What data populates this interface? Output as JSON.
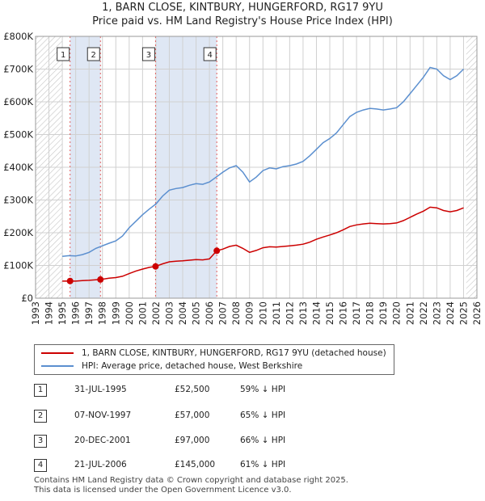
{
  "title_line1": "1, BARN CLOSE, KINTBURY, HUNGERFORD, RG17 9YU",
  "title_line2": "Price paid vs. HM Land Registry's House Price Index (HPI)",
  "legend": {
    "red_label": "1, BARN CLOSE, KINTBURY, HUNGERFORD, RG17 9YU (detached house)",
    "blue_label": "HPI: Average price, detached house, West Berkshire"
  },
  "colors": {
    "red": "#cc0000",
    "blue": "#5b8fcf",
    "shade": "#dfe7f4",
    "hatch": "#c4c4c4",
    "grid": "#d0d0d0",
    "vline": "#e06060"
  },
  "transactions": [
    {
      "num": "1",
      "date": "31-JUL-1995",
      "price": "£52,500",
      "hpi": "59% ↓ HPI"
    },
    {
      "num": "2",
      "date": "07-NOV-1997",
      "price": "£57,000",
      "hpi": "65% ↓ HPI"
    },
    {
      "num": "3",
      "date": "20-DEC-2001",
      "price": "£97,000",
      "hpi": "66% ↓ HPI"
    },
    {
      "num": "4",
      "date": "21-JUL-2006",
      "price": "£145,000",
      "hpi": "61% ↓ HPI"
    }
  ],
  "footer_line1": "Contains HM Land Registry data © Crown copyright and database right 2025.",
  "footer_line2": "This data is licensed under the Open Government Licence v3.0.",
  "chart_data": {
    "type": "line",
    "xlim": [
      1993,
      2026
    ],
    "ylim": [
      0,
      800000
    ],
    "x_ticks": [
      "1993",
      "1994",
      "1995",
      "1996",
      "1997",
      "1998",
      "1999",
      "2000",
      "2001",
      "2002",
      "2003",
      "2004",
      "2005",
      "2006",
      "2007",
      "2008",
      "2009",
      "2010",
      "2011",
      "2012",
      "2013",
      "2014",
      "2015",
      "2016",
      "2017",
      "2018",
      "2019",
      "2020",
      "2021",
      "2022",
      "2023",
      "2024",
      "2025",
      "2026"
    ],
    "y_ticks": [
      {
        "value": 0,
        "label": "£0"
      },
      {
        "value": 100000,
        "label": "£100K"
      },
      {
        "value": 200000,
        "label": "£200K"
      },
      {
        "value": 300000,
        "label": "£300K"
      },
      {
        "value": 400000,
        "label": "£400K"
      },
      {
        "value": 500000,
        "label": "£500K"
      },
      {
        "value": 600000,
        "label": "£600K"
      },
      {
        "value": 700000,
        "label": "£700K"
      },
      {
        "value": 800000,
        "label": "£800K"
      }
    ],
    "grid": true,
    "shaded_ranges": [
      [
        1995.58,
        1997.85
      ],
      [
        2001.97,
        2006.55
      ]
    ],
    "hatched_ranges": [
      [
        1993,
        1995.0
      ],
      [
        2025.2,
        2026
      ]
    ],
    "sales": [
      {
        "label": "1",
        "x": 1995.58,
        "y": 52500
      },
      {
        "label": "2",
        "x": 1997.85,
        "y": 57000
      },
      {
        "label": "3",
        "x": 2001.97,
        "y": 97000
      },
      {
        "label": "4",
        "x": 2006.55,
        "y": 145000
      }
    ],
    "series": [
      {
        "name": "HPI: Average price, detached house, West Berkshire",
        "color": "#5b8fcf",
        "points": [
          [
            1995.0,
            128000
          ],
          [
            1995.5,
            130000
          ],
          [
            1996.0,
            129000
          ],
          [
            1996.5,
            133000
          ],
          [
            1997.0,
            140000
          ],
          [
            1997.5,
            152000
          ],
          [
            1998.0,
            160000
          ],
          [
            1998.5,
            168000
          ],
          [
            1999.0,
            175000
          ],
          [
            1999.5,
            190000
          ],
          [
            2000.0,
            215000
          ],
          [
            2000.5,
            235000
          ],
          [
            2001.0,
            255000
          ],
          [
            2001.5,
            272000
          ],
          [
            2002.0,
            288000
          ],
          [
            2002.5,
            312000
          ],
          [
            2003.0,
            330000
          ],
          [
            2003.5,
            335000
          ],
          [
            2004.0,
            338000
          ],
          [
            2004.5,
            345000
          ],
          [
            2005.0,
            350000
          ],
          [
            2005.5,
            348000
          ],
          [
            2006.0,
            355000
          ],
          [
            2006.5,
            370000
          ],
          [
            2007.0,
            385000
          ],
          [
            2007.5,
            398000
          ],
          [
            2008.0,
            405000
          ],
          [
            2008.5,
            385000
          ],
          [
            2009.0,
            355000
          ],
          [
            2009.5,
            370000
          ],
          [
            2010.0,
            390000
          ],
          [
            2010.5,
            398000
          ],
          [
            2011.0,
            395000
          ],
          [
            2011.5,
            402000
          ],
          [
            2012.0,
            405000
          ],
          [
            2012.5,
            410000
          ],
          [
            2013.0,
            418000
          ],
          [
            2013.5,
            435000
          ],
          [
            2014.0,
            455000
          ],
          [
            2014.5,
            475000
          ],
          [
            2015.0,
            488000
          ],
          [
            2015.5,
            505000
          ],
          [
            2016.0,
            530000
          ],
          [
            2016.5,
            555000
          ],
          [
            2017.0,
            568000
          ],
          [
            2017.5,
            575000
          ],
          [
            2018.0,
            580000
          ],
          [
            2018.5,
            578000
          ],
          [
            2019.0,
            575000
          ],
          [
            2019.5,
            578000
          ],
          [
            2020.0,
            582000
          ],
          [
            2020.5,
            600000
          ],
          [
            2021.0,
            625000
          ],
          [
            2021.5,
            650000
          ],
          [
            2022.0,
            675000
          ],
          [
            2022.5,
            705000
          ],
          [
            2023.0,
            700000
          ],
          [
            2023.5,
            680000
          ],
          [
            2024.0,
            668000
          ],
          [
            2024.5,
            680000
          ],
          [
            2025.0,
            700000
          ]
        ]
      },
      {
        "name": "1, BARN CLOSE, KINTBURY, HUNGERFORD, RG17 9YU (detached house)",
        "color": "#cc0000",
        "points": [
          [
            1995.0,
            52000
          ],
          [
            1995.58,
            52500
          ],
          [
            1996.0,
            52000
          ],
          [
            1996.5,
            53500
          ],
          [
            1997.0,
            54500
          ],
          [
            1997.5,
            56000
          ],
          [
            1997.85,
            57000
          ],
          [
            1998.5,
            61000
          ],
          [
            1999.0,
            63000
          ],
          [
            1999.5,
            67000
          ],
          [
            2000.0,
            75000
          ],
          [
            2000.5,
            83000
          ],
          [
            2001.0,
            89000
          ],
          [
            2001.5,
            94000
          ],
          [
            2001.97,
            97000
          ],
          [
            2002.5,
            105000
          ],
          [
            2003.0,
            111000
          ],
          [
            2003.5,
            113000
          ],
          [
            2004.0,
            114000
          ],
          [
            2004.5,
            116000
          ],
          [
            2005.0,
            118000
          ],
          [
            2005.5,
            117000
          ],
          [
            2006.0,
            120000
          ],
          [
            2006.55,
            145000
          ],
          [
            2007.0,
            150000
          ],
          [
            2007.5,
            158000
          ],
          [
            2008.0,
            162000
          ],
          [
            2008.5,
            152000
          ],
          [
            2009.0,
            140000
          ],
          [
            2009.5,
            146000
          ],
          [
            2010.0,
            154000
          ],
          [
            2010.5,
            157000
          ],
          [
            2011.0,
            156000
          ],
          [
            2011.5,
            158000
          ],
          [
            2012.0,
            160000
          ],
          [
            2012.5,
            162000
          ],
          [
            2013.0,
            165000
          ],
          [
            2013.5,
            171000
          ],
          [
            2014.0,
            180000
          ],
          [
            2014.5,
            187000
          ],
          [
            2015.0,
            193000
          ],
          [
            2015.5,
            200000
          ],
          [
            2016.0,
            209000
          ],
          [
            2016.5,
            219000
          ],
          [
            2017.0,
            224000
          ],
          [
            2017.5,
            227000
          ],
          [
            2018.0,
            229000
          ],
          [
            2018.5,
            228000
          ],
          [
            2019.0,
            227000
          ],
          [
            2019.5,
            228000
          ],
          [
            2020.0,
            230000
          ],
          [
            2020.5,
            237000
          ],
          [
            2021.0,
            247000
          ],
          [
            2021.5,
            257000
          ],
          [
            2022.0,
            266000
          ],
          [
            2022.5,
            278000
          ],
          [
            2023.0,
            276000
          ],
          [
            2023.5,
            268000
          ],
          [
            2024.0,
            264000
          ],
          [
            2024.5,
            268000
          ],
          [
            2025.0,
            276000
          ]
        ]
      }
    ]
  }
}
